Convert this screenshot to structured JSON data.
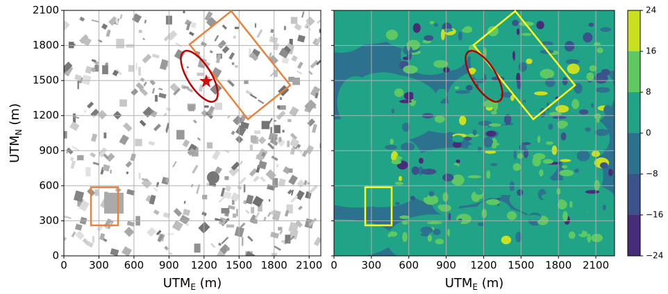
{
  "chart_data": [
    {
      "type": "image",
      "xlabel": [
        "UTM",
        "E",
        " (m)"
      ],
      "ylabel": [
        "UTM",
        "N",
        " (m)"
      ],
      "xlim": [
        0,
        2200
      ],
      "ylim": [
        0,
        2100
      ],
      "xticks": [
        0,
        300,
        600,
        900,
        1200,
        1500,
        1800,
        2100
      ],
      "yticks": [
        0,
        300,
        600,
        900,
        1200,
        1500,
        1800,
        2100
      ],
      "grid": true
    },
    {
      "type": "contour",
      "xlabel": [
        "UTM",
        "E",
        " (m)"
      ],
      "xlim": [
        0,
        2250
      ],
      "ylim": [
        0,
        2100
      ],
      "xticks": [
        0,
        300,
        600,
        900,
        1200,
        1500,
        1800,
        2100
      ],
      "yticks": [
        0,
        300,
        600,
        900,
        1200,
        1500,
        1800,
        2100
      ],
      "grid": true
    },
    {
      "type": "colorbar",
      "ylim": [
        -24,
        24
      ],
      "yticks": [
        {
          "value": -24,
          "label": "−24"
        },
        {
          "value": -16,
          "label": "−16"
        },
        {
          "value": -8,
          "label": "−8"
        },
        0,
        8,
        16,
        24
      ],
      "colors": [
        "#472c7a",
        "#3b528b",
        "#2c728e",
        "#20a386",
        "#5ec962",
        "#c8e020"
      ]
    }
  ]
}
